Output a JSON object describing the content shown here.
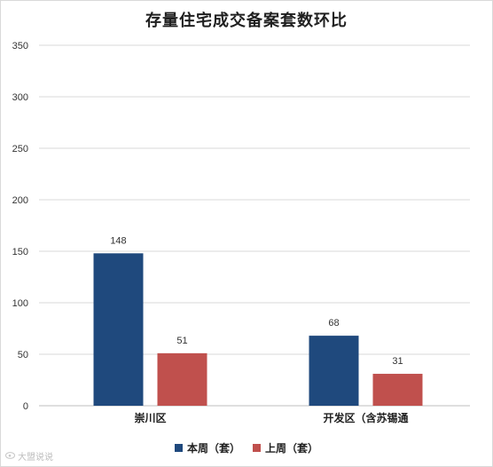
{
  "chart_data": {
    "type": "bar",
    "title": "存量住宅成交备案套数环比",
    "categories": [
      "崇川区",
      "开发区（含苏锡通"
    ],
    "series": [
      {
        "name": "本周（套）",
        "values": [
          148,
          68
        ],
        "color": "#1f497d"
      },
      {
        "name": "上周（套）",
        "values": [
          51,
          31
        ],
        "color": "#c0504d"
      }
    ],
    "ylim": [
      0,
      350
    ],
    "yticks": [
      0,
      50,
      100,
      150,
      200,
      250,
      300,
      350
    ],
    "grid": true,
    "legend_position": "bottom",
    "data_labels": true
  },
  "watermark": {
    "icon": "weibo-icon",
    "text": "大盟说说"
  }
}
